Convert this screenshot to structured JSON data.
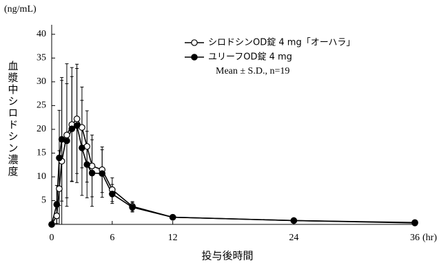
{
  "chart_data": {
    "type": "line",
    "y_unit_label": "(ng/mL)",
    "x_unit_label": "(hr)",
    "ylabel": "血漿中シロドシン濃度",
    "xlabel": "投与後時間",
    "annotation": "Mean ± S.D., n=19",
    "x": [
      0,
      0.5,
      0.75,
      1,
      1.5,
      2,
      2.5,
      3,
      3.5,
      4,
      5,
      6,
      8,
      12,
      24,
      36
    ],
    "series": [
      {
        "name": "シロドシンOD錠 4 mg「オーハラ」",
        "color": "#000000",
        "marker": "open",
        "values": [
          0,
          1.8,
          7.5,
          13.3,
          18.8,
          21.0,
          22.2,
          20.4,
          16.4,
          12.3,
          11.5,
          7.3,
          3.8,
          1.5,
          0.8,
          0.3
        ],
        "errors": [
          0,
          3,
          8,
          17,
          15,
          12,
          11.5,
          8.5,
          7.5,
          6.5,
          4.8,
          2.5,
          1,
          0.5,
          0.5,
          0.3
        ]
      },
      {
        "name": "ユリーフOD錠 4 mg",
        "color": "#000000",
        "marker": "filled",
        "values": [
          0,
          4.2,
          14.0,
          17.9,
          17.6,
          20.1,
          20.8,
          16.1,
          12.6,
          10.8,
          10.7,
          6.4,
          3.6,
          1.5,
          0.8,
          0.4
        ],
        "errors": [
          0,
          4,
          10,
          13,
          12,
          11,
          12,
          10,
          7,
          7,
          5,
          2,
          1,
          0.5,
          0.4,
          0.3
        ]
      }
    ],
    "xlim": [
      0,
      36
    ],
    "xticks": [
      0,
      6,
      12,
      24,
      36
    ],
    "ylim": [
      0,
      42
    ],
    "yticks": [
      5,
      10,
      15,
      20,
      25,
      30,
      35,
      40
    ],
    "grid": false
  }
}
